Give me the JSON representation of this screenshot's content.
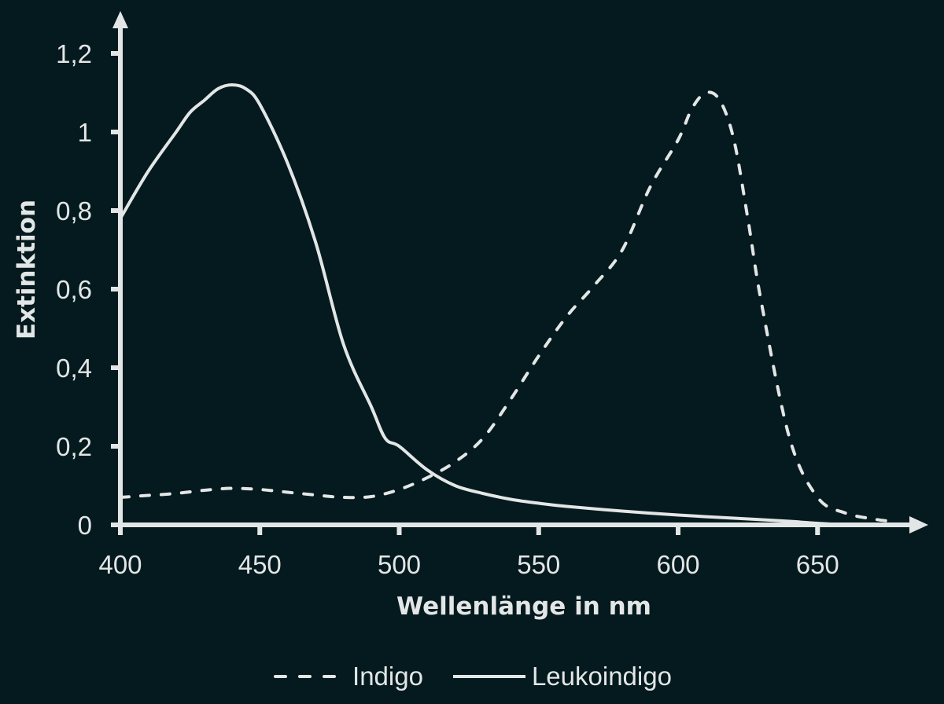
{
  "chart_data": {
    "type": "line",
    "title": "",
    "xlabel": "Wellenlänge in nm",
    "ylabel": "Extinktion",
    "xlim": [
      400,
      690
    ],
    "ylim": [
      0,
      1.25
    ],
    "x_ticks": [
      400,
      450,
      500,
      550,
      600,
      650
    ],
    "x_tick_labels": [
      "400",
      "450",
      "500",
      "550",
      "600",
      "650"
    ],
    "y_ticks": [
      0,
      0.2,
      0.4,
      0.6,
      0.8,
      1.0,
      1.2
    ],
    "y_tick_labels": [
      "0",
      "0,2",
      "0,4",
      "0,6",
      "0,8",
      "1",
      "1,2"
    ],
    "grid": false,
    "legend_position": "bottom-center",
    "series": [
      {
        "name": "Indigo",
        "style": "dashed",
        "x": [
          400,
          410,
          420,
          430,
          440,
          450,
          460,
          470,
          480,
          490,
          500,
          510,
          520,
          530,
          540,
          550,
          560,
          570,
          580,
          590,
          600,
          605,
          610,
          615,
          620,
          625,
          630,
          640,
          650,
          660,
          670,
          675
        ],
        "y": [
          0.07,
          0.075,
          0.08,
          0.088,
          0.093,
          0.09,
          0.083,
          0.076,
          0.07,
          0.072,
          0.09,
          0.12,
          0.16,
          0.22,
          0.32,
          0.43,
          0.53,
          0.61,
          0.7,
          0.86,
          0.98,
          1.06,
          1.1,
          1.08,
          0.98,
          0.78,
          0.56,
          0.22,
          0.07,
          0.03,
          0.015,
          0.01
        ]
      },
      {
        "name": "Leukoindigo",
        "style": "solid",
        "x": [
          400,
          410,
          420,
          425,
          430,
          435,
          440,
          445,
          450,
          460,
          470,
          480,
          490,
          495,
          500,
          510,
          520,
          530,
          540,
          550,
          560,
          580,
          600,
          620,
          640,
          650,
          660
        ],
        "y": [
          0.78,
          0.9,
          1.0,
          1.05,
          1.08,
          1.11,
          1.12,
          1.11,
          1.07,
          0.92,
          0.72,
          0.46,
          0.3,
          0.22,
          0.2,
          0.14,
          0.1,
          0.08,
          0.065,
          0.055,
          0.047,
          0.035,
          0.025,
          0.017,
          0.009,
          0.004,
          0.0
        ]
      }
    ]
  },
  "legend": {
    "items": [
      {
        "label": "Indigo",
        "style": "dashed"
      },
      {
        "label": "Leukoindigo",
        "style": "solid"
      }
    ]
  },
  "colors": {
    "background": "#041a1e",
    "foreground": "#e3e6e6"
  }
}
